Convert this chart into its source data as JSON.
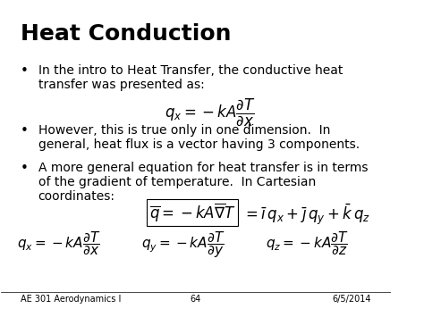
{
  "title": "Heat Conduction",
  "bg_color": "#ffffff",
  "text_color": "#000000",
  "title_fontsize": 18,
  "body_fontsize": 10,
  "footer_left": "AE 301 Aerodynamics I",
  "footer_center": "64",
  "footer_right": "6/5/2014",
  "bullet1_line1": "In the intro to Heat Transfer, the conductive heat",
  "bullet1_line2": "transfer was presented as:",
  "bullet2_line1": "However, this is true only in one dimension.  In",
  "bullet2_line2": "general, heat flux is a vector having 3 components.",
  "bullet3_line1": "A more general equation for heat transfer is in terms",
  "bullet3_line2": "of the gradient of temperature.  In Cartesian",
  "bullet3_line3": "coordinates:"
}
